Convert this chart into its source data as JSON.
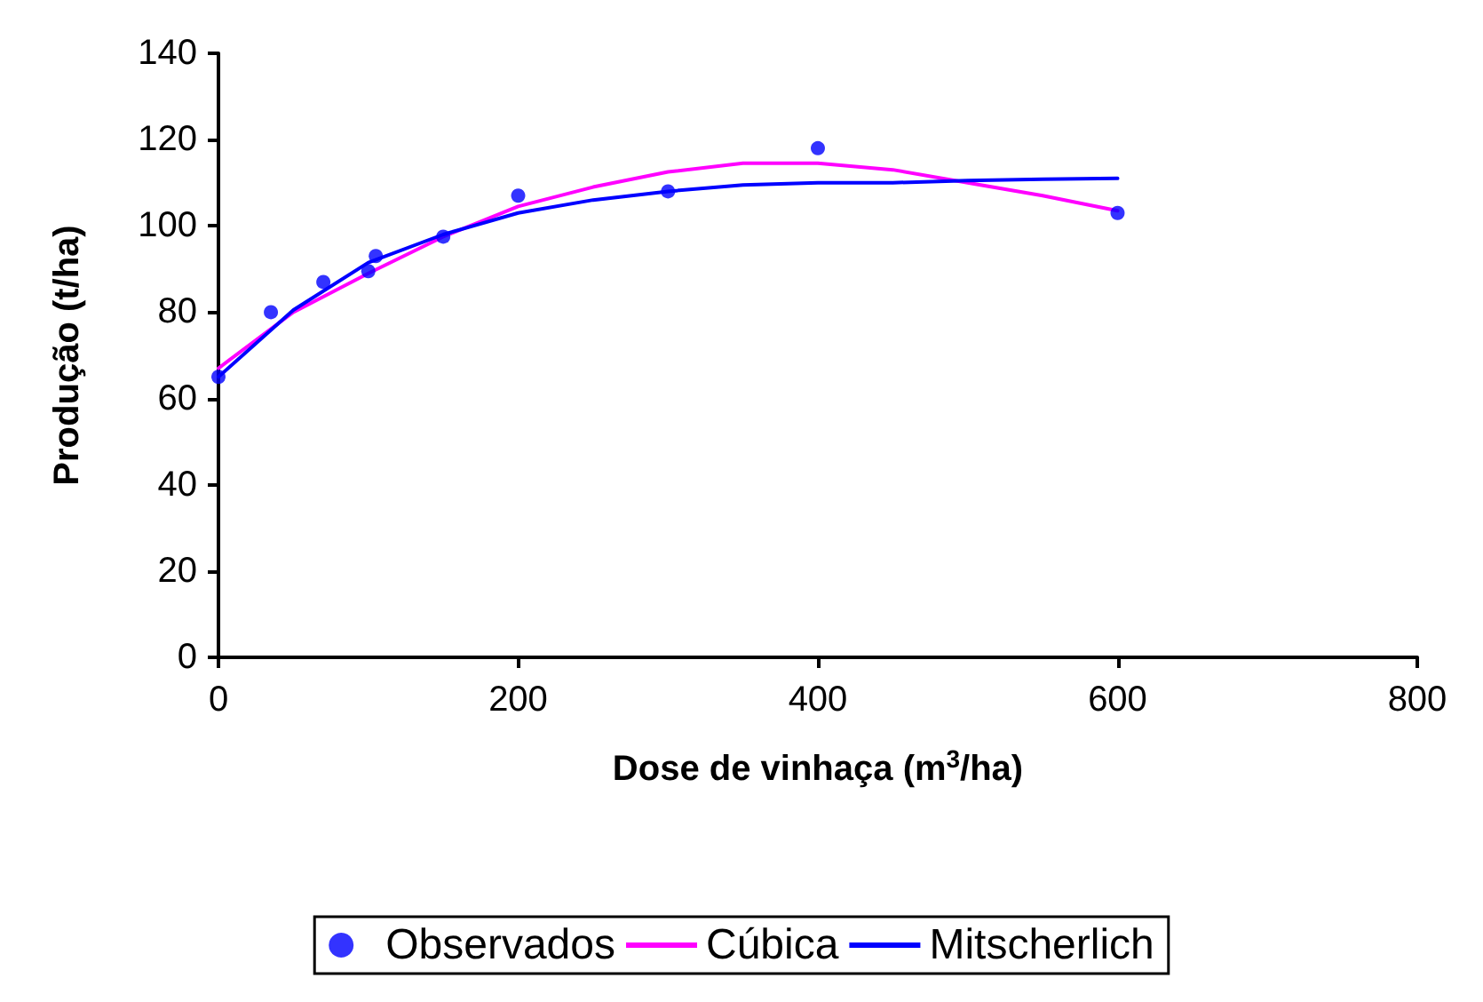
{
  "chart_data": {
    "type": "scatter",
    "xlabel": "Dose de vinhaça (m$^{3}$/ha)",
    "ylabel": "Produção (t/ha)",
    "xlim": [
      0,
      800
    ],
    "xticks": [
      0,
      200,
      400,
      600,
      800
    ],
    "ylim": [
      0,
      140
    ],
    "yticks": [
      0,
      20,
      40,
      60,
      80,
      100,
      120,
      140
    ],
    "grid": false,
    "legend": "bottom",
    "series": [
      {
        "name": "Observados",
        "marker": "circle",
        "color": "#0000ff",
        "x": [
          0,
          35,
          70,
          100,
          105,
          150,
          200,
          300,
          400,
          600
        ],
        "values": [
          65,
          80,
          87,
          89.5,
          93,
          97.5,
          107,
          108,
          118,
          103
        ]
      },
      {
        "name": "Cúbica",
        "type": "line",
        "marker": "none",
        "color": "#ff00ff",
        "x": [
          0,
          50,
          100,
          150,
          200,
          250,
          300,
          350,
          400,
          450,
          500,
          550,
          600
        ],
        "values": [
          67,
          80,
          89,
          97.5,
          104.5,
          109,
          112.5,
          114.5,
          114.5,
          113,
          110,
          107,
          103.5
        ]
      },
      {
        "name": "Mitscherlich",
        "type": "line",
        "marker": "none",
        "color": "#0000ff",
        "x": [
          0,
          50,
          100,
          150,
          200,
          250,
          300,
          350,
          400,
          450,
          500,
          550,
          600
        ],
        "values": [
          65,
          80.5,
          91.5,
          98,
          103,
          106,
          108,
          109.5,
          110,
          110,
          110.5,
          110.8,
          111
        ]
      }
    ]
  }
}
